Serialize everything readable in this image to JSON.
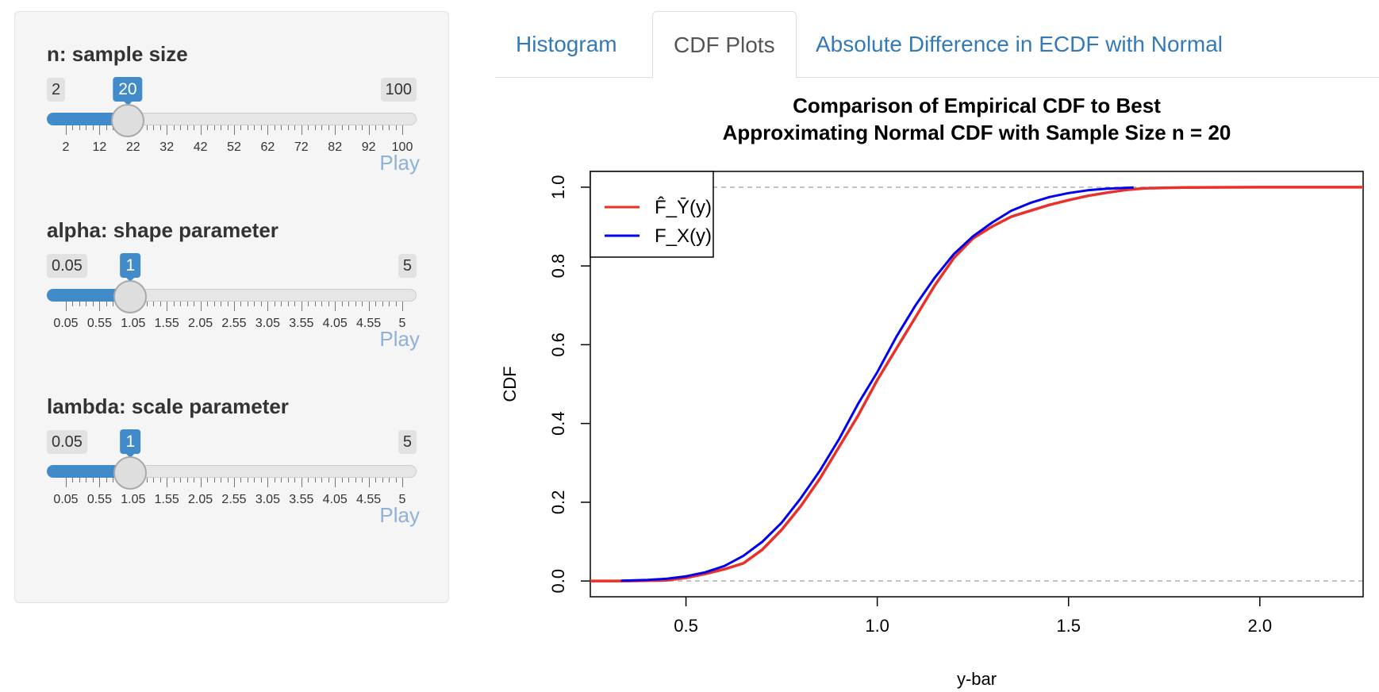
{
  "sidebar": {
    "sliders": [
      {
        "label": "n: sample size",
        "min": "2",
        "max": "100",
        "value": "20",
        "fraction": 0.1837,
        "ticks": [
          "2",
          "12",
          "22",
          "32",
          "42",
          "52",
          "62",
          "72",
          "82",
          "92",
          "100"
        ],
        "play": "Play"
      },
      {
        "label": "alpha: shape parameter",
        "min": "0.05",
        "max": "5",
        "value": "1",
        "fraction": 0.1919,
        "ticks": [
          "0.05",
          "0.55",
          "1.05",
          "1.55",
          "2.05",
          "2.55",
          "3.05",
          "3.55",
          "4.05",
          "4.55",
          "5"
        ],
        "play": "Play"
      },
      {
        "label": "lambda: scale parameter",
        "min": "0.05",
        "max": "5",
        "value": "1",
        "fraction": 0.1919,
        "ticks": [
          "0.05",
          "0.55",
          "1.05",
          "1.55",
          "2.05",
          "2.55",
          "3.05",
          "3.55",
          "4.05",
          "4.55",
          "5"
        ],
        "play": "Play"
      }
    ]
  },
  "tabs": [
    {
      "label": "Histogram",
      "active": false
    },
    {
      "label": "CDF Plots",
      "active": true
    },
    {
      "label": "Absolute Difference in ECDF with Normal",
      "active": false
    }
  ],
  "chart_data": {
    "type": "line",
    "title": [
      "Comparison of Empirical CDF to Best",
      "Approximating Normal CDF with Sample Size n = 20"
    ],
    "xlabel": "y-bar",
    "ylabel": "CDF",
    "xlim": [
      0.25,
      2.27
    ],
    "ylim": [
      -0.04,
      1.04
    ],
    "xticks": [
      0.5,
      1.0,
      1.5,
      2.0
    ],
    "xtick_labels": [
      "0.5",
      "1.0",
      "1.5",
      "2.0"
    ],
    "yticks": [
      0.0,
      0.2,
      0.4,
      0.6,
      0.8,
      1.0
    ],
    "ytick_labels": [
      "0.0",
      "0.2",
      "0.4",
      "0.6",
      "0.8",
      "1.0"
    ],
    "hlines": [
      0,
      1
    ],
    "legend": "top-left",
    "series": [
      {
        "name": "F̂_Ȳ(y)",
        "color": "#e8312a",
        "x": [
          0.25,
          0.35,
          0.45,
          0.5,
          0.55,
          0.6,
          0.65,
          0.7,
          0.75,
          0.8,
          0.85,
          0.9,
          0.95,
          1.0,
          1.05,
          1.1,
          1.15,
          1.2,
          1.25,
          1.3,
          1.35,
          1.4,
          1.45,
          1.5,
          1.55,
          1.6,
          1.65,
          1.7,
          1.8,
          2.0,
          2.27
        ],
        "y": [
          0,
          0,
          0.002,
          0.008,
          0.018,
          0.03,
          0.045,
          0.08,
          0.13,
          0.19,
          0.26,
          0.34,
          0.42,
          0.51,
          0.59,
          0.67,
          0.75,
          0.82,
          0.87,
          0.9,
          0.925,
          0.94,
          0.955,
          0.967,
          0.978,
          0.986,
          0.993,
          0.997,
          0.999,
          1.0,
          1.0
        ]
      },
      {
        "name": "F_X(y)",
        "color": "#0000ee",
        "x": [
          0.33,
          0.4,
          0.45,
          0.5,
          0.55,
          0.6,
          0.65,
          0.7,
          0.75,
          0.8,
          0.85,
          0.9,
          0.95,
          1.0,
          1.05,
          1.1,
          1.15,
          1.2,
          1.25,
          1.3,
          1.35,
          1.4,
          1.45,
          1.5,
          1.55,
          1.6,
          1.67
        ],
        "y": [
          0.001,
          0.003,
          0.006,
          0.012,
          0.022,
          0.038,
          0.064,
          0.1,
          0.148,
          0.21,
          0.28,
          0.36,
          0.45,
          0.53,
          0.62,
          0.7,
          0.77,
          0.83,
          0.875,
          0.91,
          0.94,
          0.96,
          0.975,
          0.985,
          0.992,
          0.996,
          0.999
        ]
      }
    ]
  }
}
